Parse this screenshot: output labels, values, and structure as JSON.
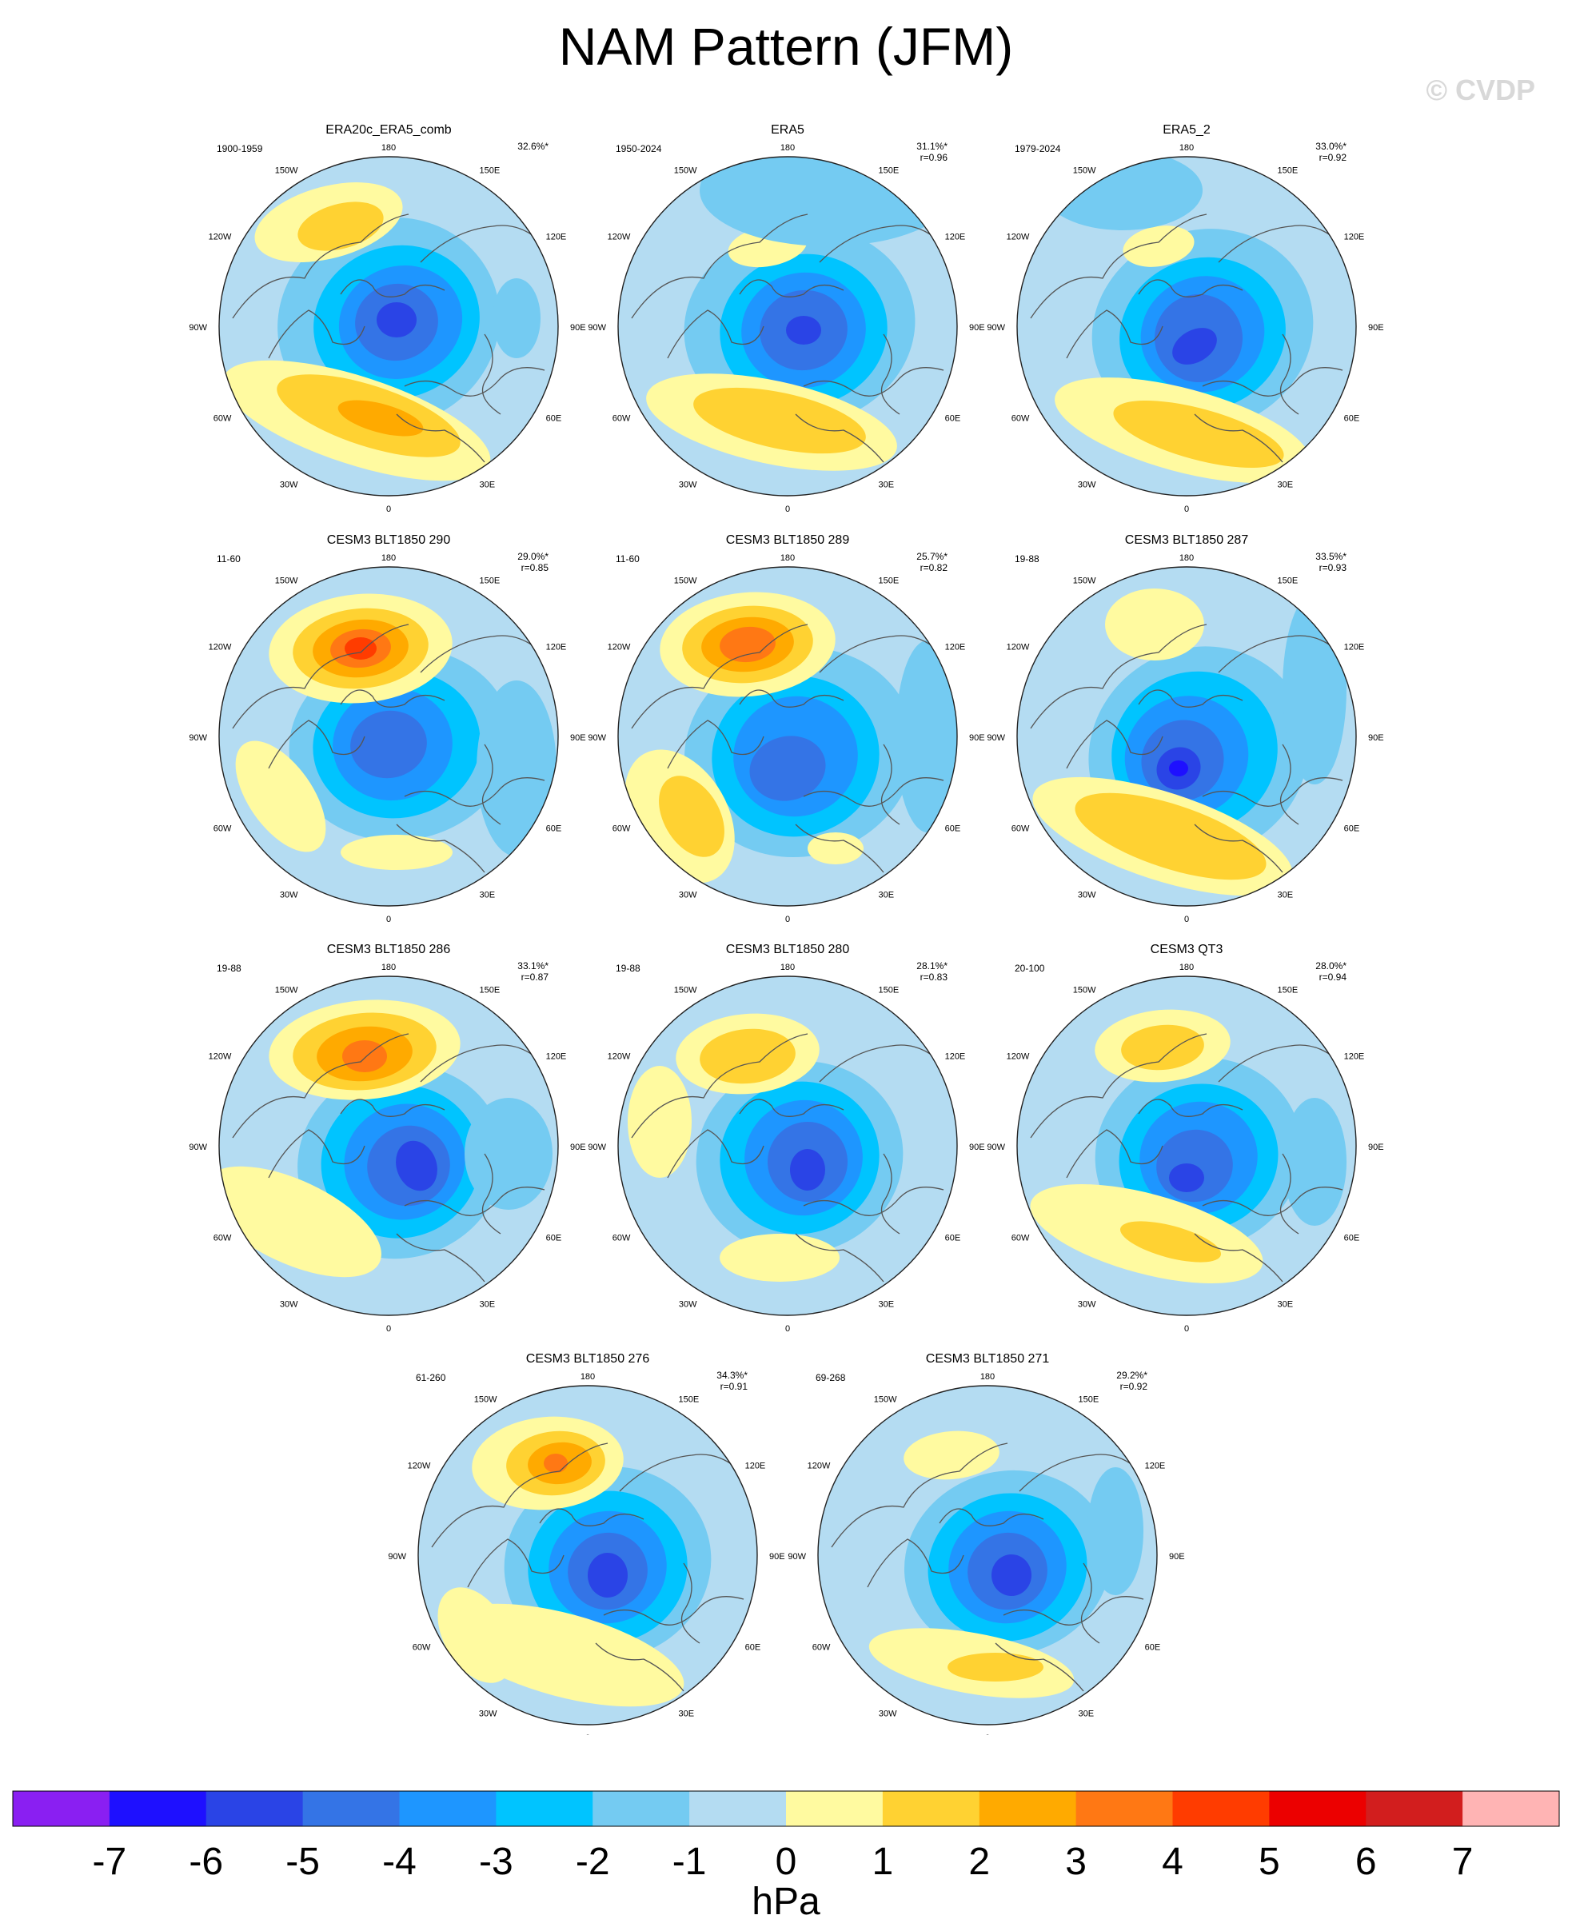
{
  "page": {
    "title": "NAM Pattern (JFM)",
    "credit": "© CVDP"
  },
  "map_labels": {
    "lon": [
      "180",
      "150E",
      "120E",
      "90E",
      "60E",
      "30E",
      "0",
      "30W",
      "60W",
      "90W",
      "120W",
      "150W"
    ]
  },
  "panels": [
    {
      "title": "ERA20c_ERA5_comb",
      "period": "1900-1959",
      "pct": "32.6%*",
      "r": ""
    },
    {
      "title": "ERA5",
      "period": "1950-2024",
      "pct": "31.1%*",
      "r": "r=0.96"
    },
    {
      "title": "ERA5_2",
      "period": "1979-2024",
      "pct": "33.0%*",
      "r": "r=0.92"
    },
    {
      "title": "CESM3 BLT1850 290",
      "period": "11-60",
      "pct": "29.0%*",
      "r": "r=0.85"
    },
    {
      "title": "CESM3 BLT1850 289",
      "period": "11-60",
      "pct": "25.7%*",
      "r": "r=0.82"
    },
    {
      "title": "CESM3 BLT1850 287",
      "period": "19-88",
      "pct": "33.5%*",
      "r": "r=0.93"
    },
    {
      "title": "CESM3 BLT1850 286",
      "period": "19-88",
      "pct": "33.1%*",
      "r": "r=0.87"
    },
    {
      "title": "CESM3 BLT1850 280",
      "period": "19-88",
      "pct": "28.1%*",
      "r": "r=0.83"
    },
    {
      "title": "CESM3 QT3",
      "period": "20-100",
      "pct": "28.0%*",
      "r": "r=0.94"
    },
    {
      "title": "CESM3 BLT1850 276",
      "period": "61-260",
      "pct": "34.3%*",
      "r": "r=0.91"
    },
    {
      "title": "CESM3 BLT1850 271",
      "period": "69-268",
      "pct": "29.2%*",
      "r": "r=0.92"
    }
  ],
  "chart_data": {
    "type": "heatmap",
    "title": "NAM Pattern (JFM)",
    "colorbar": {
      "unit": "hPa",
      "tick_labels": [
        "-7",
        "-6",
        "-5",
        "-4",
        "-3",
        "-2",
        "-1",
        "0",
        "1",
        "2",
        "3",
        "4",
        "5",
        "6",
        "7"
      ],
      "colors": [
        "#8a1ff2",
        "#1e10ff",
        "#2a44e6",
        "#3474e6",
        "#1e96ff",
        "#00c4ff",
        "#74cbf2",
        "#b4dcf2",
        "#fffaa0",
        "#ffd232",
        "#ffaa00",
        "#ff7814",
        "#ff3c00",
        "#ec0000",
        "#d21e1e",
        "#ffb4b4"
      ]
    }
  }
}
